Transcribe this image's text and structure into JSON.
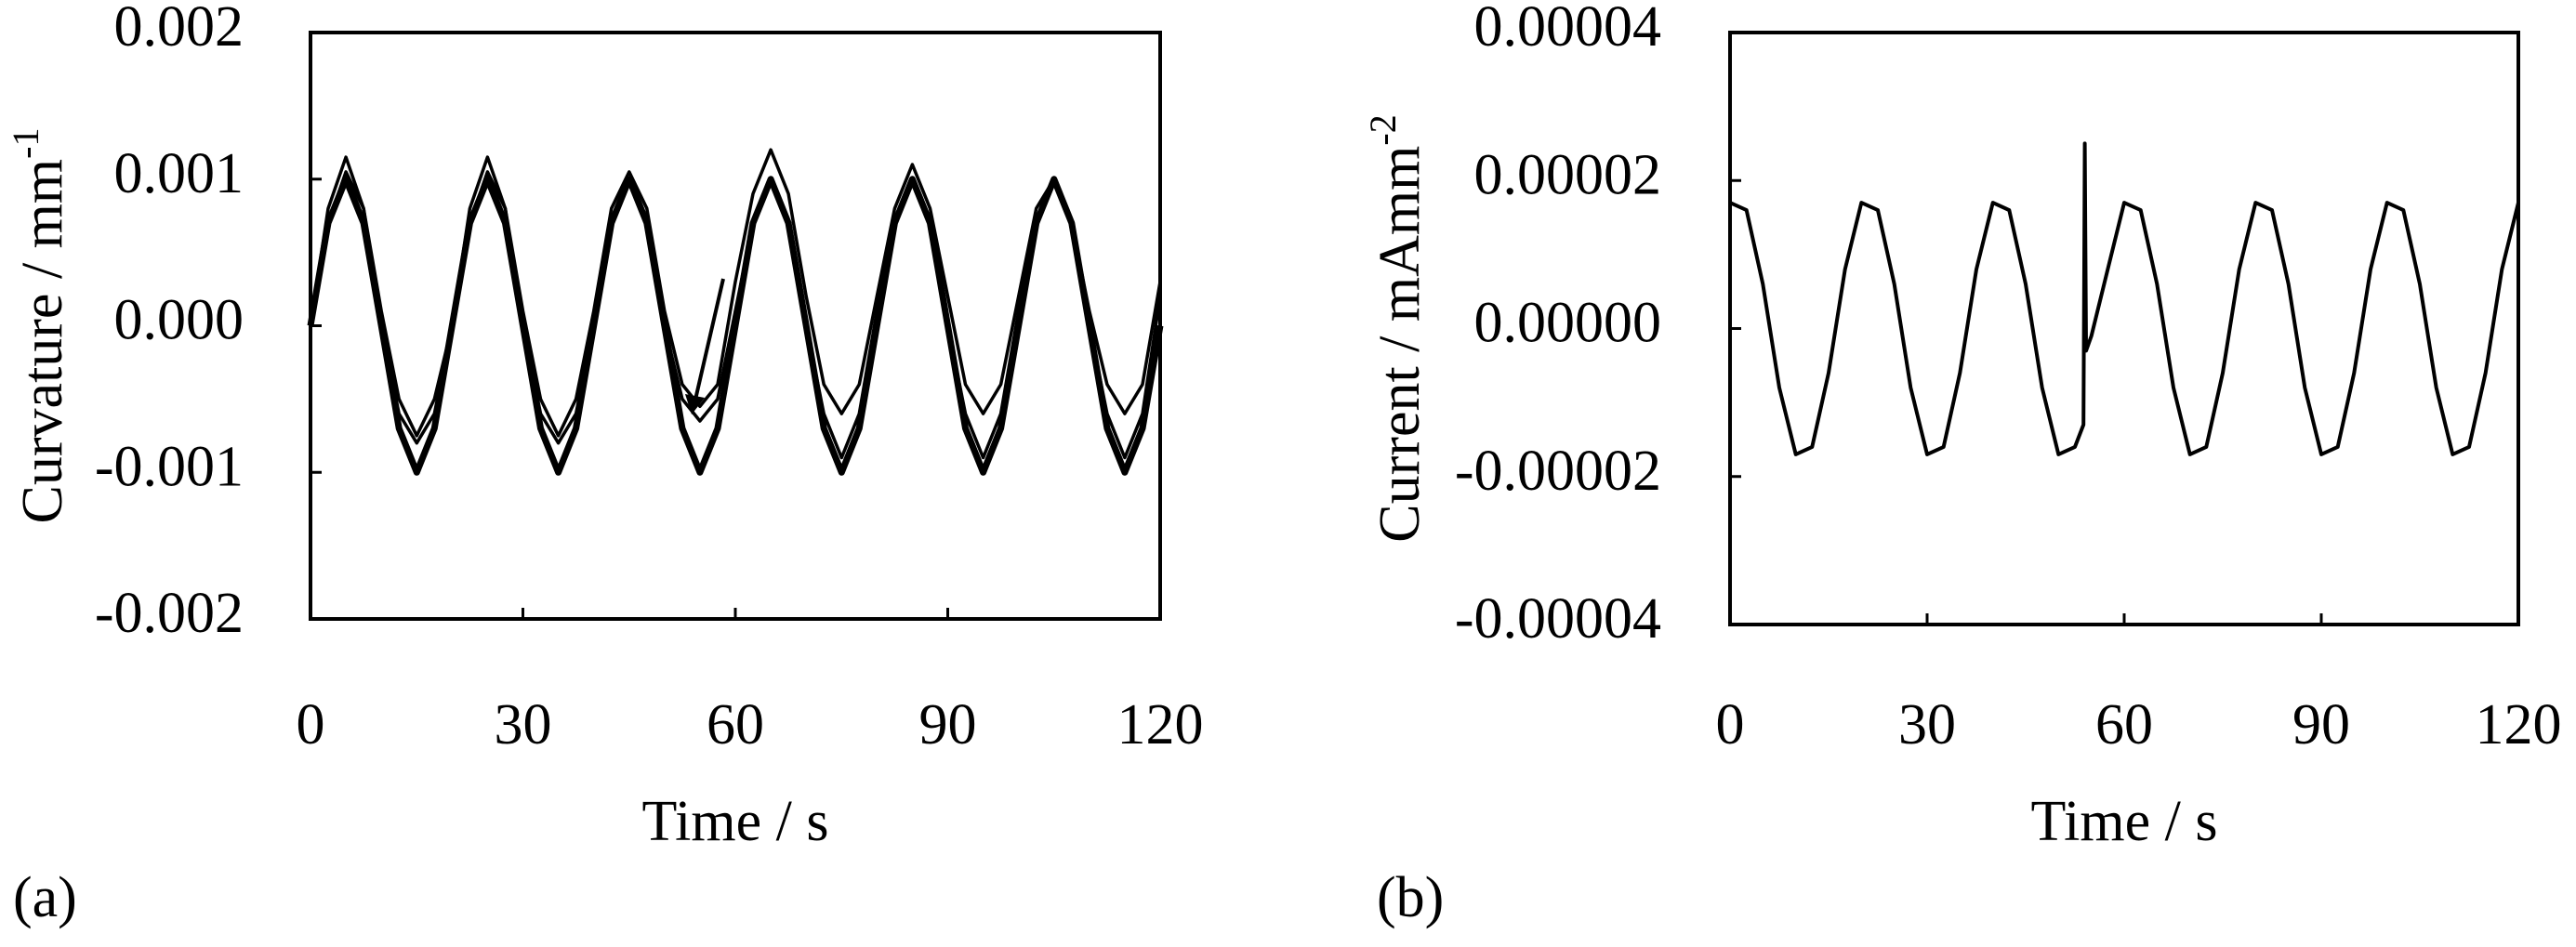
{
  "chart_data": [
    {
      "type": "line",
      "panel_label": "(a)",
      "y_label": "Curvature / mm",
      "y_label_superscript": "-1",
      "x_label": "Time / s",
      "xlim": [
        0,
        120
      ],
      "xticks": [
        0,
        30,
        60,
        90,
        120
      ],
      "ylim": [
        -0.002,
        0.002
      ],
      "yticks": [
        -0.002,
        -0.001,
        {
          "value": 0,
          "label": "0.000"
        },
        0.001,
        0.002
      ],
      "x": [
        0,
        2.5,
        5,
        7.5,
        10,
        12.5,
        15,
        17.5,
        20,
        22.5,
        25,
        27.5,
        30,
        32.5,
        35,
        37.5,
        40,
        42.5,
        45,
        47.5,
        50,
        52.5,
        55,
        57.5,
        60,
        62.5,
        65,
        67.5,
        70,
        72.5,
        75,
        77.5,
        80,
        82.5,
        85,
        87.5,
        90,
        92.5,
        95,
        97.5,
        100,
        102.5,
        105,
        107.5,
        110,
        112.5,
        115,
        117.5,
        120
      ],
      "series": [
        {
          "color": "#000000",
          "line_width": 3.5,
          "values": [
            0,
            0.0008,
            0.00115,
            0.0008,
            0.0001,
            -0.0005,
            -0.00075,
            -0.0005,
            0,
            0.0008,
            0.00115,
            0.0008,
            0.0001,
            -0.0005,
            -0.00075,
            -0.0005,
            0.0001,
            0.0008,
            0.00105,
            0.0008,
            0.0001,
            -0.0004,
            -0.00055,
            -0.0004,
            0.0003,
            0.0009,
            0.0012,
            0.0009,
            0.0002,
            -0.0004,
            -0.0006,
            -0.0004,
            0.0002,
            0.0008,
            0.0011,
            0.0008,
            0.0002,
            -0.0004,
            -0.0006,
            -0.0004,
            0.0002,
            0.0008,
            0.001,
            0.0007,
            0.0001,
            -0.0004,
            -0.0006,
            -0.0004,
            0.0003
          ]
        },
        {
          "color": "#000000",
          "line_width": 3.5,
          "values": [
            0,
            0.0007,
            0.00105,
            0.0008,
            0,
            -0.0006,
            -0.0008,
            -0.0006,
            0,
            0.0007,
            0.00105,
            0.0008,
            0,
            -0.0006,
            -0.0008,
            -0.0006,
            0,
            0.0007,
            0.001,
            0.0007,
            0,
            -0.0005,
            -0.00065,
            -0.0005,
            0.0001,
            0.0007,
            0.001,
            0.0007,
            0,
            -0.0006,
            -0.0009,
            -0.0006,
            0.0001,
            0.0007,
            0.001,
            0.0007,
            0,
            -0.0006,
            -0.0009,
            -0.0006,
            0.0001,
            0.0007,
            0.001,
            0.0007,
            0,
            -0.0006,
            -0.0009,
            -0.0006,
            0.0002
          ]
        },
        {
          "color": "#000000",
          "line_width": 7,
          "values": [
            0,
            0.0007,
            0.001,
            0.0007,
            0,
            -0.0007,
            -0.001,
            -0.0007,
            0,
            0.0007,
            0.001,
            0.0007,
            0,
            -0.0007,
            -0.001,
            -0.0007,
            0,
            0.0007,
            0.001,
            0.0007,
            0,
            -0.0007,
            -0.001,
            -0.0007,
            0,
            0.0007,
            0.001,
            0.0007,
            0,
            -0.0007,
            -0.001,
            -0.0007,
            0,
            0.0007,
            0.001,
            0.0007,
            0,
            -0.0007,
            -0.001,
            -0.0007,
            0,
            0.0007,
            0.001,
            0.0007,
            0,
            -0.0007,
            -0.001,
            -0.0007,
            0
          ]
        }
      ]
    },
    {
      "type": "line",
      "panel_label": "(b)",
      "y_label": "Current / mAmm",
      "y_label_superscript": "-2",
      "x_label": "Time / s",
      "xlim": [
        0,
        120
      ],
      "xticks": [
        0,
        30,
        60,
        90,
        120
      ],
      "ylim": [
        -4e-05,
        4e-05
      ],
      "yticks": [
        -4e-05,
        -2e-05,
        {
          "value": 0,
          "label": "0.00000"
        },
        2e-05,
        4e-05
      ],
      "x": [
        0,
        2.5,
        5,
        7.5,
        10,
        12.5,
        15,
        17.5,
        20,
        22.5,
        25,
        27.5,
        30,
        32.5,
        35,
        37.5,
        40,
        42.5,
        45,
        47.5,
        50,
        52.5,
        53.8,
        54,
        54.2,
        55,
        57.5,
        60,
        62.5,
        65,
        67.5,
        70,
        72.5,
        75,
        77.5,
        80,
        82.5,
        85,
        87.5,
        90,
        92.5,
        95,
        97.5,
        100,
        102.5,
        105,
        107.5,
        110,
        112.5,
        115,
        117.5,
        120
      ],
      "series": [
        {
          "color": "#000000",
          "line_width": 4,
          "values": [
            1.7e-05,
            1.6e-05,
            6e-06,
            -8e-06,
            -1.7e-05,
            -1.6e-05,
            -6e-06,
            8e-06,
            1.7e-05,
            1.6e-05,
            6e-06,
            -8e-06,
            -1.7e-05,
            -1.6e-05,
            -6e-06,
            8e-06,
            1.7e-05,
            1.6e-05,
            6e-06,
            -8e-06,
            -1.7e-05,
            -1.6e-05,
            -1.3e-05,
            2.5e-05,
            -3e-06,
            -1e-06,
            8e-06,
            1.7e-05,
            1.6e-05,
            6e-06,
            -8e-06,
            -1.7e-05,
            -1.6e-05,
            -6e-06,
            8e-06,
            1.7e-05,
            1.6e-05,
            6e-06,
            -8e-06,
            -1.7e-05,
            -1.6e-05,
            -6e-06,
            8e-06,
            1.7e-05,
            1.6e-05,
            6e-06,
            -8e-06,
            -1.7e-05,
            -1.6e-05,
            -6e-06,
            8e-06,
            1.7e-05
          ]
        }
      ]
    }
  ]
}
